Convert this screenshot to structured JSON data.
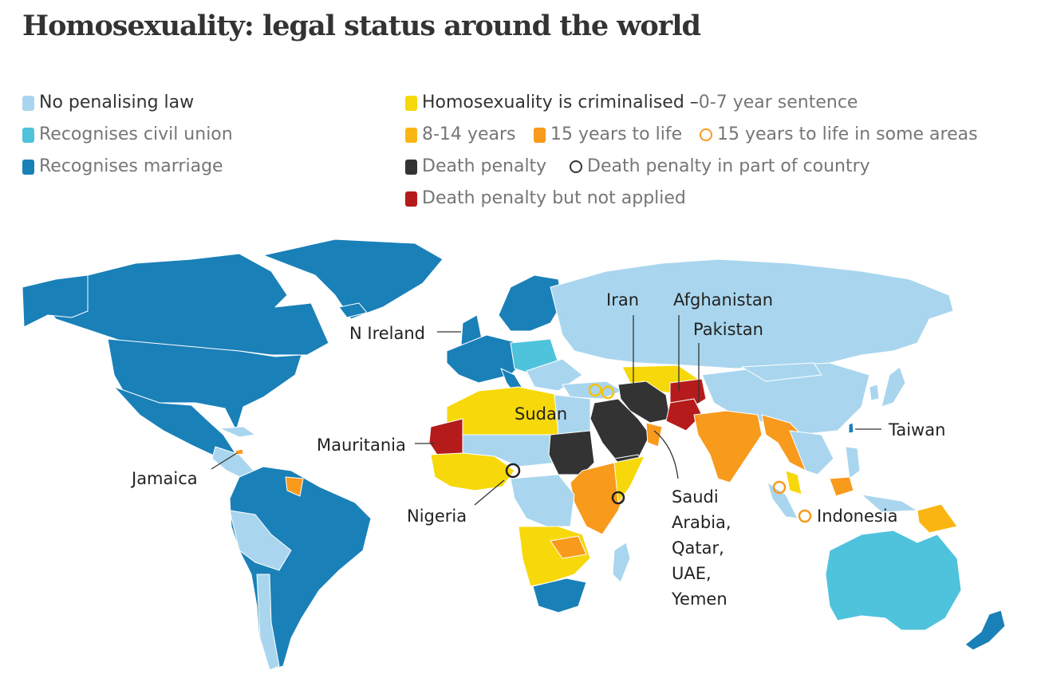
{
  "title": "Homosexuality: legal status around the world",
  "colors": {
    "no_penalising_law": "#a9d6ee",
    "civil_union": "#4fc3dc",
    "marriage": "#1a80b8",
    "criminalised_0_7": "#f7d80a",
    "years_8_14": "#fbb512",
    "years_15_life": "#f89a1c",
    "death_penalty": "#333333",
    "death_not_applied": "#b51b1b"
  },
  "legend": {
    "no_penalising_law": "No penalising law",
    "civil_union": "Recognises civil union",
    "marriage": "Recognises marriage",
    "criminalised_a": "Homosexuality is criminalised – ",
    "criminalised_b": "0-7 year sentence",
    "years_8_14": "8-14 years",
    "years_15_life": "15 years to life",
    "years_15_life_some": "15 years to life in some areas",
    "death_penalty": "Death penalty",
    "death_part": "Death penalty in part of country",
    "death_not_applied": "Death penalty but not applied"
  },
  "labels": {
    "iran": "Iran",
    "afghanistan": "Afghanistan",
    "pakistan": "Pakistan",
    "n_ireland": "N Ireland",
    "sudan": "Sudan",
    "mauritania": "Mauritania",
    "jamaica": "Jamaica",
    "nigeria": "Nigeria",
    "taiwan": "Taiwan",
    "indonesia": "Indonesia",
    "saudi_group": [
      "Saudi",
      "Arabia,",
      "Qatar,",
      "UAE,",
      "Yemen"
    ]
  }
}
